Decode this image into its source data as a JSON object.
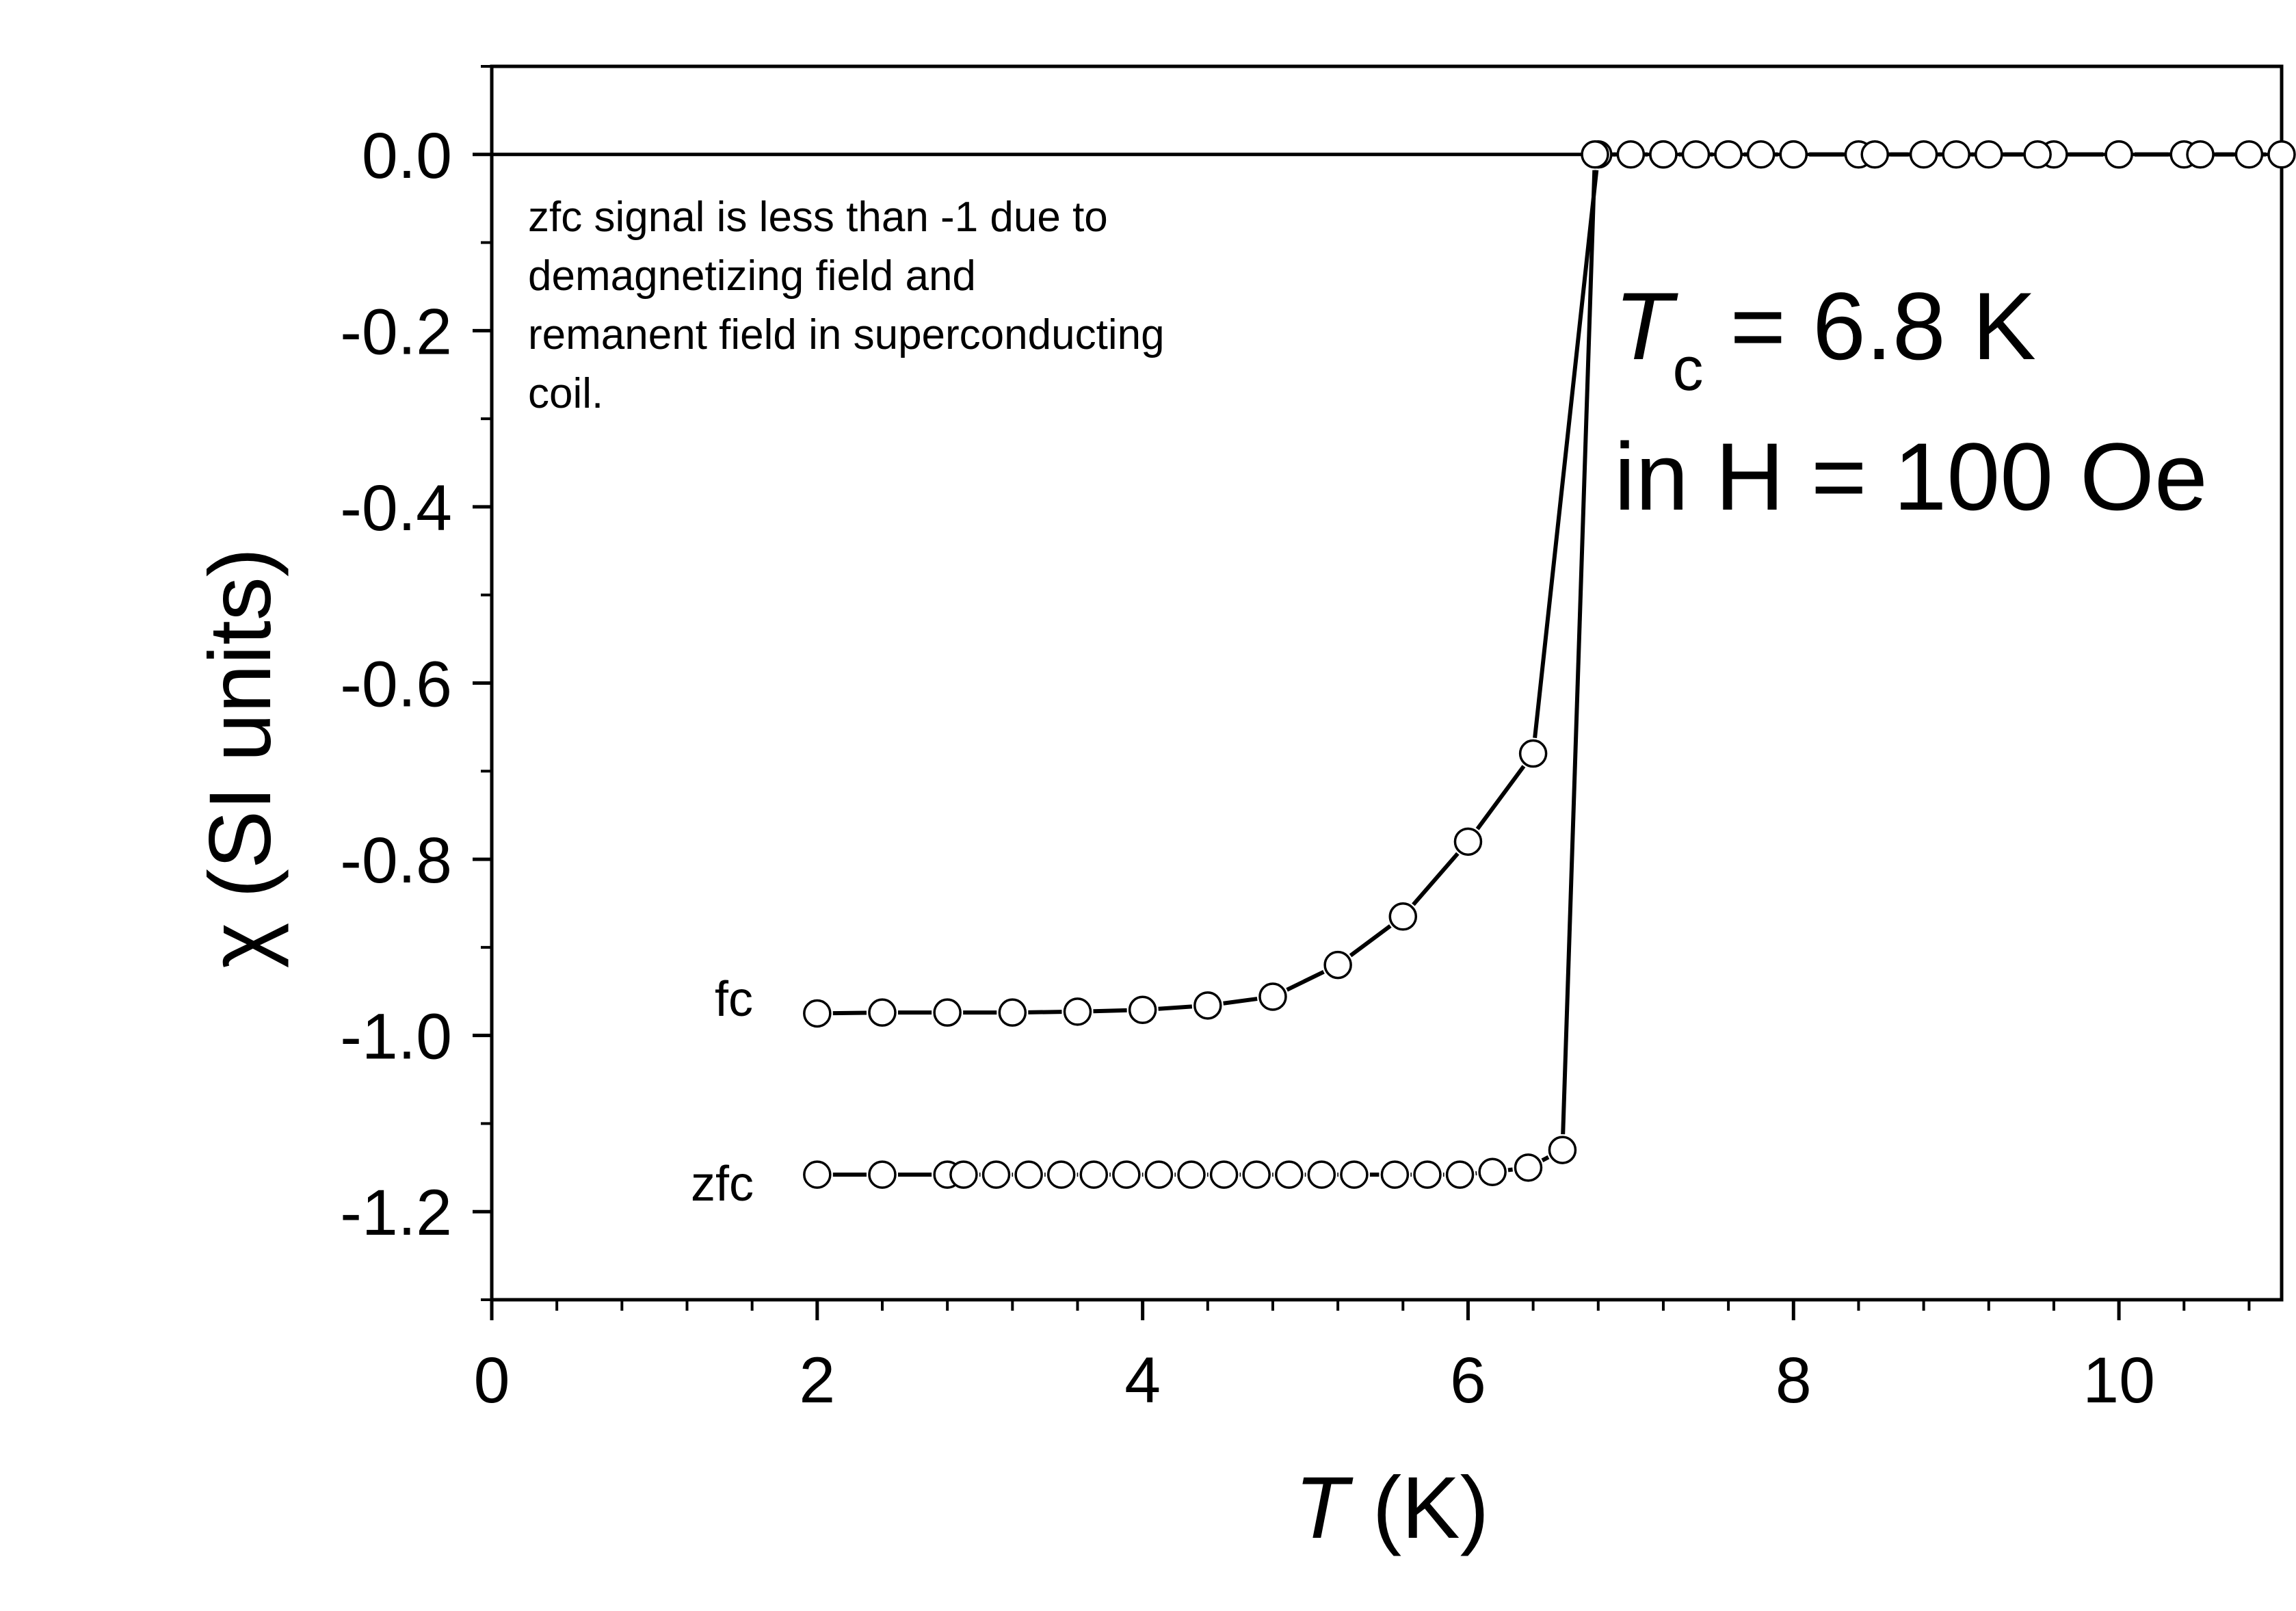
{
  "chart_data": {
    "type": "line",
    "xlabel_symbol": "T",
    "xlabel_unit": " (K)",
    "ylabel": "χ (SI units)",
    "xlim": [
      0,
      11
    ],
    "ylim": [
      -1.3,
      0.1
    ],
    "xticks": [
      0,
      2,
      4,
      6,
      8,
      10
    ],
    "xtick_labels": [
      "0",
      "2",
      "4",
      "6",
      "8",
      "10"
    ],
    "yticks": [
      0.0,
      -0.2,
      -0.4,
      -0.6,
      -0.8,
      -1.0,
      -1.2
    ],
    "ytick_labels": [
      "0.0",
      "-0.2",
      "-0.4",
      "-0.6",
      "-0.8",
      "-1.0",
      "-1.2"
    ],
    "zero_line": true,
    "series": [
      {
        "name": "fc",
        "x": [
          2.0,
          2.4,
          2.8,
          3.2,
          3.6,
          4.0,
          4.4,
          4.8,
          5.2,
          5.6,
          6.0,
          6.4,
          6.8,
          7.2,
          7.6,
          8.0,
          8.4,
          8.8,
          9.2,
          9.6,
          10.0,
          10.4,
          10.8
        ],
        "y": [
          -0.975,
          -0.974,
          -0.974,
          -0.974,
          -0.973,
          -0.971,
          -0.966,
          -0.956,
          -0.92,
          -0.865,
          -0.78,
          -0.68,
          0.0,
          0.0,
          0.0,
          0.0,
          0.0,
          0.0,
          0.0,
          0.0,
          0.0,
          0.0,
          0.0
        ]
      },
      {
        "name": "zfc",
        "x": [
          2.0,
          2.4,
          2.8,
          2.9,
          3.1,
          3.3,
          3.5,
          3.7,
          3.9,
          4.1,
          4.3,
          4.5,
          4.7,
          4.9,
          5.1,
          5.3,
          5.55,
          5.75,
          5.95,
          6.15,
          6.37,
          6.58,
          6.78,
          7.0,
          7.2,
          7.4,
          7.6,
          7.8,
          8.0,
          8.5,
          9.0,
          9.5,
          10.0,
          10.5,
          11.0
        ],
        "y": [
          -1.158,
          -1.158,
          -1.158,
          -1.158,
          -1.158,
          -1.158,
          -1.158,
          -1.158,
          -1.158,
          -1.158,
          -1.158,
          -1.158,
          -1.158,
          -1.158,
          -1.158,
          -1.158,
          -1.158,
          -1.158,
          -1.158,
          -1.155,
          -1.15,
          -1.13,
          0.0,
          0.0,
          0.0,
          0.0,
          0.0,
          0.0,
          0.0,
          0.0,
          0.0,
          0.0,
          0.0,
          0.0,
          0.0
        ]
      }
    ],
    "series_labels": [
      "fc",
      "zfc"
    ],
    "annotations": {
      "note_lines": [
        "zfc signal is less than -1 due to",
        "demagnetizing field and",
        "remanent field in superconducting",
        "coil."
      ],
      "tc_symbol": "T",
      "tc_subscript": "c",
      "tc_value": " = 6.8 K",
      "field_line": "in H = 100 Oe"
    }
  }
}
